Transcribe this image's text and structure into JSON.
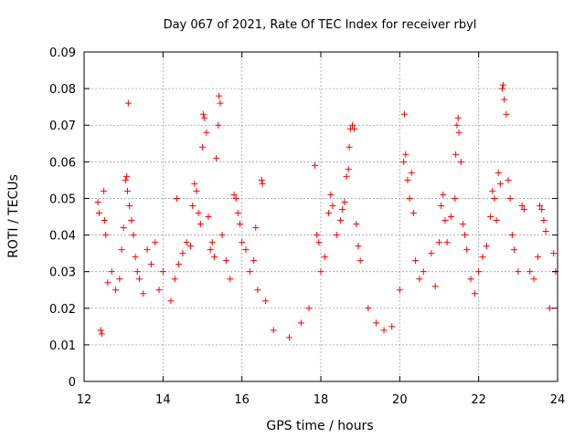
{
  "chart_data": {
    "type": "scatter",
    "title": "Day 067 of 2021, Rate Of TEC Index for receiver rbyl",
    "xlabel": "GPS time / hours",
    "ylabel": "ROTI / TECUs",
    "xlim": [
      12,
      24
    ],
    "ylim": [
      0,
      0.09
    ],
    "x_ticks": [
      12,
      14,
      16,
      18,
      20,
      22,
      24
    ],
    "x_tick_labels": [
      "12",
      "14",
      "16",
      "18",
      "20",
      "22",
      "24"
    ],
    "y_ticks": [
      0,
      0.01,
      0.02,
      0.03,
      0.04,
      0.05,
      0.06,
      0.07,
      0.08,
      0.09
    ],
    "y_tick_labels": [
      "0",
      "0.01",
      "0.02",
      "0.03",
      "0.04",
      "0.05",
      "0.06",
      "0.07",
      "0.08",
      "0.09"
    ],
    "grid": true,
    "marker": "+",
    "color": "#ff0000",
    "series": [
      {
        "name": "ROTI",
        "points": [
          [
            12.35,
            0.049
          ],
          [
            12.38,
            0.046
          ],
          [
            12.42,
            0.014
          ],
          [
            12.45,
            0.013
          ],
          [
            12.5,
            0.052
          ],
          [
            12.52,
            0.044
          ],
          [
            12.55,
            0.04
          ],
          [
            12.6,
            0.027
          ],
          [
            12.7,
            0.03
          ],
          [
            12.8,
            0.025
          ],
          [
            12.9,
            0.028
          ],
          [
            12.95,
            0.036
          ],
          [
            13.0,
            0.042
          ],
          [
            13.05,
            0.055
          ],
          [
            13.08,
            0.056
          ],
          [
            13.1,
            0.052
          ],
          [
            13.12,
            0.076
          ],
          [
            13.15,
            0.048
          ],
          [
            13.2,
            0.044
          ],
          [
            13.25,
            0.04
          ],
          [
            13.3,
            0.034
          ],
          [
            13.35,
            0.03
          ],
          [
            13.4,
            0.028
          ],
          [
            13.5,
            0.024
          ],
          [
            13.6,
            0.036
          ],
          [
            13.7,
            0.032
          ],
          [
            13.8,
            0.038
          ],
          [
            13.9,
            0.025
          ],
          [
            14.0,
            0.03
          ],
          [
            14.2,
            0.022
          ],
          [
            14.3,
            0.028
          ],
          [
            14.35,
            0.05
          ],
          [
            14.4,
            0.032
          ],
          [
            14.5,
            0.035
          ],
          [
            14.6,
            0.038
          ],
          [
            14.7,
            0.037
          ],
          [
            14.75,
            0.048
          ],
          [
            14.8,
            0.054
          ],
          [
            14.85,
            0.052
          ],
          [
            14.9,
            0.046
          ],
          [
            14.95,
            0.043
          ],
          [
            15.0,
            0.064
          ],
          [
            15.02,
            0.073
          ],
          [
            15.05,
            0.072
          ],
          [
            15.1,
            0.068
          ],
          [
            15.15,
            0.045
          ],
          [
            15.2,
            0.036
          ],
          [
            15.25,
            0.038
          ],
          [
            15.3,
            0.034
          ],
          [
            15.35,
            0.061
          ],
          [
            15.4,
            0.07
          ],
          [
            15.42,
            0.078
          ],
          [
            15.45,
            0.076
          ],
          [
            15.5,
            0.04
          ],
          [
            15.6,
            0.033
          ],
          [
            15.7,
            0.028
          ],
          [
            15.8,
            0.051
          ],
          [
            15.85,
            0.05
          ],
          [
            15.9,
            0.046
          ],
          [
            15.95,
            0.043
          ],
          [
            16.0,
            0.038
          ],
          [
            16.1,
            0.036
          ],
          [
            16.2,
            0.03
          ],
          [
            16.3,
            0.033
          ],
          [
            16.35,
            0.042
          ],
          [
            16.4,
            0.025
          ],
          [
            16.5,
            0.055
          ],
          [
            16.52,
            0.054
          ],
          [
            16.6,
            0.022
          ],
          [
            16.8,
            0.014
          ],
          [
            17.2,
            0.012
          ],
          [
            17.5,
            0.016
          ],
          [
            17.7,
            0.02
          ],
          [
            17.85,
            0.059
          ],
          [
            17.9,
            0.04
          ],
          [
            17.95,
            0.038
          ],
          [
            18.0,
            0.03
          ],
          [
            18.1,
            0.034
          ],
          [
            18.2,
            0.046
          ],
          [
            18.25,
            0.051
          ],
          [
            18.3,
            0.048
          ],
          [
            18.4,
            0.04
          ],
          [
            18.5,
            0.044
          ],
          [
            18.55,
            0.047
          ],
          [
            18.6,
            0.049
          ],
          [
            18.65,
            0.056
          ],
          [
            18.7,
            0.058
          ],
          [
            18.72,
            0.064
          ],
          [
            18.75,
            0.069
          ],
          [
            18.8,
            0.07
          ],
          [
            18.85,
            0.069
          ],
          [
            18.9,
            0.043
          ],
          [
            18.95,
            0.037
          ],
          [
            19.0,
            0.033
          ],
          [
            19.2,
            0.02
          ],
          [
            19.4,
            0.016
          ],
          [
            19.6,
            0.014
          ],
          [
            19.8,
            0.015
          ],
          [
            20.0,
            0.025
          ],
          [
            20.1,
            0.06
          ],
          [
            20.12,
            0.073
          ],
          [
            20.15,
            0.062
          ],
          [
            20.2,
            0.055
          ],
          [
            20.25,
            0.05
          ],
          [
            20.3,
            0.057
          ],
          [
            20.35,
            0.046
          ],
          [
            20.4,
            0.033
          ],
          [
            20.5,
            0.028
          ],
          [
            20.6,
            0.03
          ],
          [
            20.8,
            0.035
          ],
          [
            20.9,
            0.026
          ],
          [
            21.0,
            0.038
          ],
          [
            21.05,
            0.048
          ],
          [
            21.1,
            0.051
          ],
          [
            21.15,
            0.044
          ],
          [
            21.2,
            0.038
          ],
          [
            21.3,
            0.045
          ],
          [
            21.4,
            0.05
          ],
          [
            21.42,
            0.062
          ],
          [
            21.45,
            0.07
          ],
          [
            21.48,
            0.072
          ],
          [
            21.5,
            0.068
          ],
          [
            21.55,
            0.06
          ],
          [
            21.6,
            0.043
          ],
          [
            21.65,
            0.04
          ],
          [
            21.7,
            0.036
          ],
          [
            21.8,
            0.028
          ],
          [
            21.9,
            0.024
          ],
          [
            22.0,
            0.03
          ],
          [
            22.1,
            0.034
          ],
          [
            22.2,
            0.037
          ],
          [
            22.3,
            0.045
          ],
          [
            22.35,
            0.052
          ],
          [
            22.4,
            0.05
          ],
          [
            22.45,
            0.044
          ],
          [
            22.5,
            0.057
          ],
          [
            22.55,
            0.054
          ],
          [
            22.6,
            0.08
          ],
          [
            22.62,
            0.081
          ],
          [
            22.65,
            0.077
          ],
          [
            22.7,
            0.073
          ],
          [
            22.75,
            0.055
          ],
          [
            22.8,
            0.05
          ],
          [
            22.85,
            0.04
          ],
          [
            22.9,
            0.036
          ],
          [
            23.0,
            0.03
          ],
          [
            23.1,
            0.048
          ],
          [
            23.15,
            0.047
          ],
          [
            23.3,
            0.03
          ],
          [
            23.4,
            0.028
          ],
          [
            23.5,
            0.034
          ],
          [
            23.55,
            0.048
          ],
          [
            23.6,
            0.047
          ],
          [
            23.65,
            0.044
          ],
          [
            23.7,
            0.041
          ],
          [
            23.8,
            0.02
          ],
          [
            23.9,
            0.035
          ],
          [
            23.95,
            0.03
          ]
        ]
      }
    ]
  }
}
